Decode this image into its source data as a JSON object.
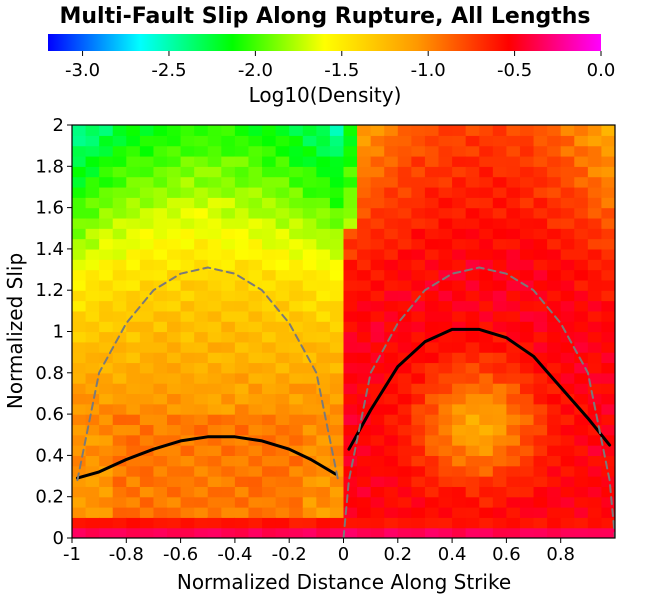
{
  "chart_data": {
    "type": "heatmap",
    "title": "Multi-Fault Slip Along Rupture, All Lengths",
    "xlabel": "Normalized Distance Along Strike",
    "ylabel": "Normalized Slip",
    "xlim": [
      -1,
      1
    ],
    "ylim": [
      0,
      2
    ],
    "x_ticks": [
      "-1",
      "-0.8",
      "-0.6",
      "-0.4",
      "-0.2",
      "0",
      "0.2",
      "0.4",
      "0.6",
      "0.8"
    ],
    "y_ticks": [
      "0",
      "0.2",
      "0.4",
      "0.6",
      "0.8",
      "1",
      "1.2",
      "1.4",
      "1.6",
      "1.8",
      "2"
    ],
    "colorbar": {
      "label": "Log10(Density)",
      "range": [
        -3.2,
        0.0
      ],
      "ticks": [
        "-3.0",
        "-2.5",
        "-2.0",
        "-1.5",
        "-1.0",
        "-0.5",
        "0.0"
      ],
      "colors": [
        "#0000ff",
        "#00ffff",
        "#00ff00",
        "#ffff00",
        "#ff9900",
        "#ff0000",
        "#ff00ff"
      ]
    },
    "grid": {
      "x_bins": 40,
      "y_bins": 40
    },
    "series": [
      {
        "style": "solid-black",
        "x": [
          -0.98,
          -0.9,
          -0.8,
          -0.7,
          -0.6,
          -0.5,
          -0.4,
          -0.3,
          -0.2,
          -0.12,
          -0.03
        ],
        "y": [
          0.29,
          0.32,
          0.38,
          0.43,
          0.47,
          0.49,
          0.49,
          0.47,
          0.43,
          0.38,
          0.31
        ]
      },
      {
        "style": "solid-black",
        "x": [
          0.02,
          0.1,
          0.2,
          0.3,
          0.4,
          0.5,
          0.6,
          0.7,
          0.8,
          0.9,
          0.98
        ],
        "y": [
          0.43,
          0.62,
          0.83,
          0.95,
          1.01,
          1.01,
          0.97,
          0.88,
          0.73,
          0.58,
          0.45
        ]
      },
      {
        "style": "dashed-gray",
        "x": [
          -0.98,
          -0.9,
          -0.8,
          -0.7,
          -0.6,
          -0.5,
          -0.4,
          -0.3,
          -0.2,
          -0.1,
          -0.02
        ],
        "y": [
          0.28,
          0.8,
          1.04,
          1.2,
          1.28,
          1.31,
          1.28,
          1.2,
          1.04,
          0.8,
          0.28
        ]
      },
      {
        "style": "dashed-gray",
        "x": [
          0.0,
          0.02,
          0.1,
          0.2,
          0.3,
          0.4,
          0.5,
          0.6,
          0.7,
          0.8,
          0.9,
          0.98,
          1.0
        ],
        "y": [
          0.0,
          0.28,
          0.8,
          1.04,
          1.2,
          1.28,
          1.31,
          1.28,
          1.2,
          1.04,
          0.8,
          0.28,
          0.0
        ]
      }
    ]
  }
}
